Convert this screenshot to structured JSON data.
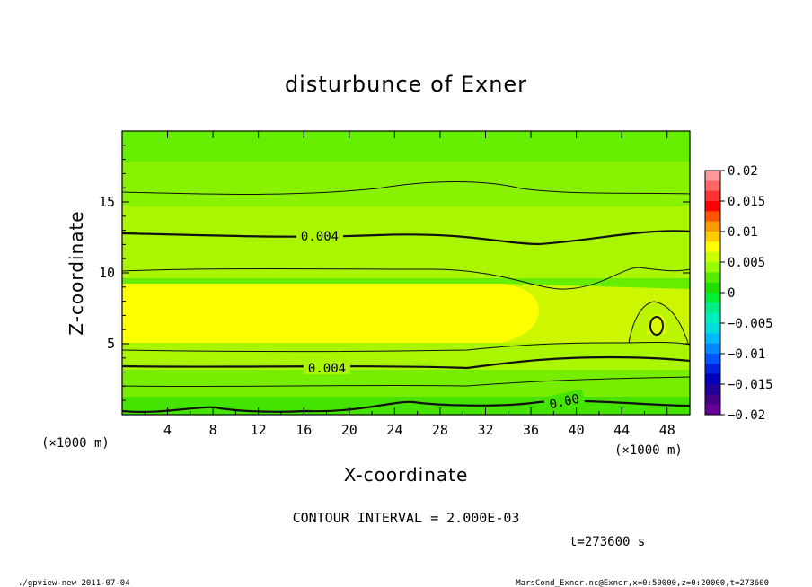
{
  "chart_data": {
    "type": "heatmap",
    "title": "disturbunce of Exner",
    "xlabel": "X-coordinate",
    "ylabel": "Z-coordinate",
    "x_unit": "(×1000 m)",
    "x_unit_right": "(×1000 m)",
    "xlim": [
      0,
      50
    ],
    "ylim": [
      0,
      20
    ],
    "x_ticks": [
      4,
      8,
      12,
      16,
      20,
      24,
      28,
      32,
      36,
      40,
      44,
      48
    ],
    "y_ticks": [
      5,
      10,
      15
    ],
    "colorbar": {
      "ticks": [
        0.02,
        0.015,
        0.01,
        0.005,
        0,
        -0.005,
        -0.01,
        -0.015,
        -0.02
      ],
      "tick_labels": [
        "0.02",
        "0.015",
        "0.01",
        "0.005",
        "0",
        "−0.005",
        "−0.01",
        "−0.015",
        "−0.02"
      ],
      "colors": [
        "#ff9999",
        "#ff6666",
        "#ff3333",
        "#ff0000",
        "#ff5500",
        "#ff9900",
        "#ffcc00",
        "#ffff00",
        "#ccff00",
        "#99ff00",
        "#55ee00",
        "#22dd00",
        "#00ee33",
        "#00ee88",
        "#00eebb",
        "#00dddd",
        "#00bbff",
        "#0088ff",
        "#0055ff",
        "#0022dd",
        "#0000bb",
        "#220099",
        "#440088",
        "#660099"
      ]
    },
    "contour_levels": [
      {
        "z": 15.8,
        "label": ""
      },
      {
        "z": 12.6,
        "label": "0.004"
      },
      {
        "z": 10.0,
        "label": ""
      },
      {
        "z": 4.6,
        "label": ""
      },
      {
        "z": 3.2,
        "label": "0.004"
      },
      {
        "z": 2.1,
        "label": ""
      },
      {
        "z": 0.4,
        "label": "0.00"
      }
    ],
    "contour_interval": "CONTOUR INTERVAL = 2.000E-03",
    "time": "t=273600 s"
  },
  "footer": {
    "left": "./gpview-new   2011-07-04",
    "right": "MarsCond_Exner.nc@Exner,x=0:50000,z=0:20000,t=273600"
  }
}
